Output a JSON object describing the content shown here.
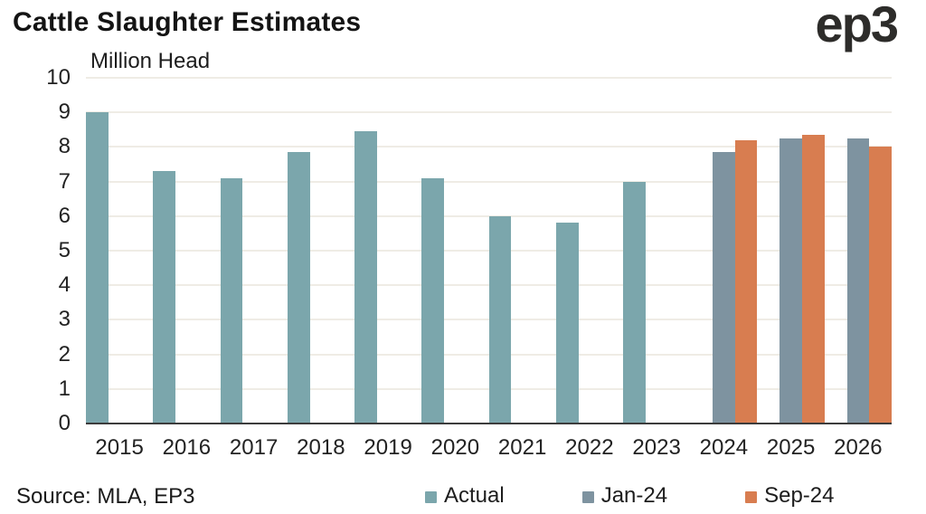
{
  "header": {
    "title": "Cattle Slaughter Estimates",
    "logo": "ep3"
  },
  "chart_data": {
    "type": "bar",
    "title": "Cattle Slaughter Estimates",
    "ylabel": "Million Head",
    "xlabel": "",
    "categories": [
      "2015",
      "2016",
      "2017",
      "2018",
      "2019",
      "2020",
      "2021",
      "2022",
      "2023",
      "2024",
      "2025",
      "2026"
    ],
    "series": [
      {
        "name": "Actual",
        "color": "#7BA6AC",
        "values": [
          9.0,
          7.3,
          7.1,
          7.85,
          8.45,
          7.1,
          6.0,
          5.8,
          7.0,
          null,
          null,
          null
        ]
      },
      {
        "name": "Jan-24",
        "color": "#7E93A0",
        "values": [
          null,
          null,
          null,
          null,
          null,
          null,
          null,
          null,
          null,
          7.85,
          8.25,
          8.25
        ]
      },
      {
        "name": "Sep-24",
        "color": "#D87D50",
        "values": [
          null,
          null,
          null,
          null,
          null,
          null,
          null,
          null,
          null,
          8.2,
          8.35,
          8.0
        ]
      }
    ],
    "ylim": [
      0,
      10
    ],
    "ytick_step": 1,
    "grid": true,
    "legend_position": "bottom"
  },
  "footer": {
    "source": "Source: MLA, EP3"
  },
  "colors": {
    "grid": "#EFECE5",
    "axis": "#3C3C3C",
    "title_text": "#141414",
    "tick_text": "#222222"
  }
}
